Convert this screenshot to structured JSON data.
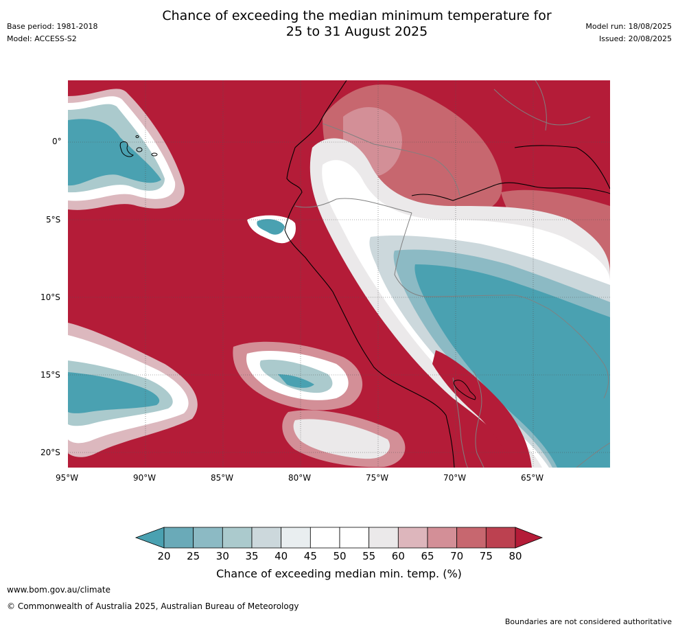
{
  "title": {
    "line1": "Chance of exceeding the median minimum temperature for",
    "line2": "25 to 31 August 2025"
  },
  "meta_left": {
    "base_period": "Base period: 1981-2018",
    "model": "Model: ACCESS-S2"
  },
  "meta_right": {
    "model_run": "Model run: 18/08/2025",
    "issued": "Issued: 20/08/2025"
  },
  "map": {
    "lat_labels": [
      "0°",
      "5°S",
      "10°S",
      "15°S",
      "20°S"
    ],
    "lon_labels": [
      "95°W",
      "90°W",
      "85°W",
      "80°W",
      "75°W",
      "70°W",
      "65°W"
    ],
    "colors": {
      "ocean_high": "#b41c38",
      "blue_low": "#4aa1b1",
      "coast": "#000000",
      "border": "#808080"
    }
  },
  "colorbar": {
    "ticks": [
      "20",
      "25",
      "30",
      "35",
      "40",
      "45",
      "50",
      "55",
      "60",
      "65",
      "70",
      "75",
      "80"
    ],
    "colors": [
      "#4aa1b1",
      "#6aaab8",
      "#8cbac4",
      "#abcacd",
      "#ccd8dc",
      "#e9eef0",
      "#ffffff",
      "#ffffff",
      "#ebe9ea",
      "#ddb6bc",
      "#d38f97",
      "#c7676f",
      "#bc4150",
      "#b41c38"
    ],
    "label": "Chance of exceeding median min. temp. (%)"
  },
  "footer": {
    "url": "www.bom.gov.au/climate",
    "copyright": "© Commonwealth of Australia 2025, Australian Bureau of Meteorology",
    "note": "Boundaries are not considered authoritative"
  }
}
